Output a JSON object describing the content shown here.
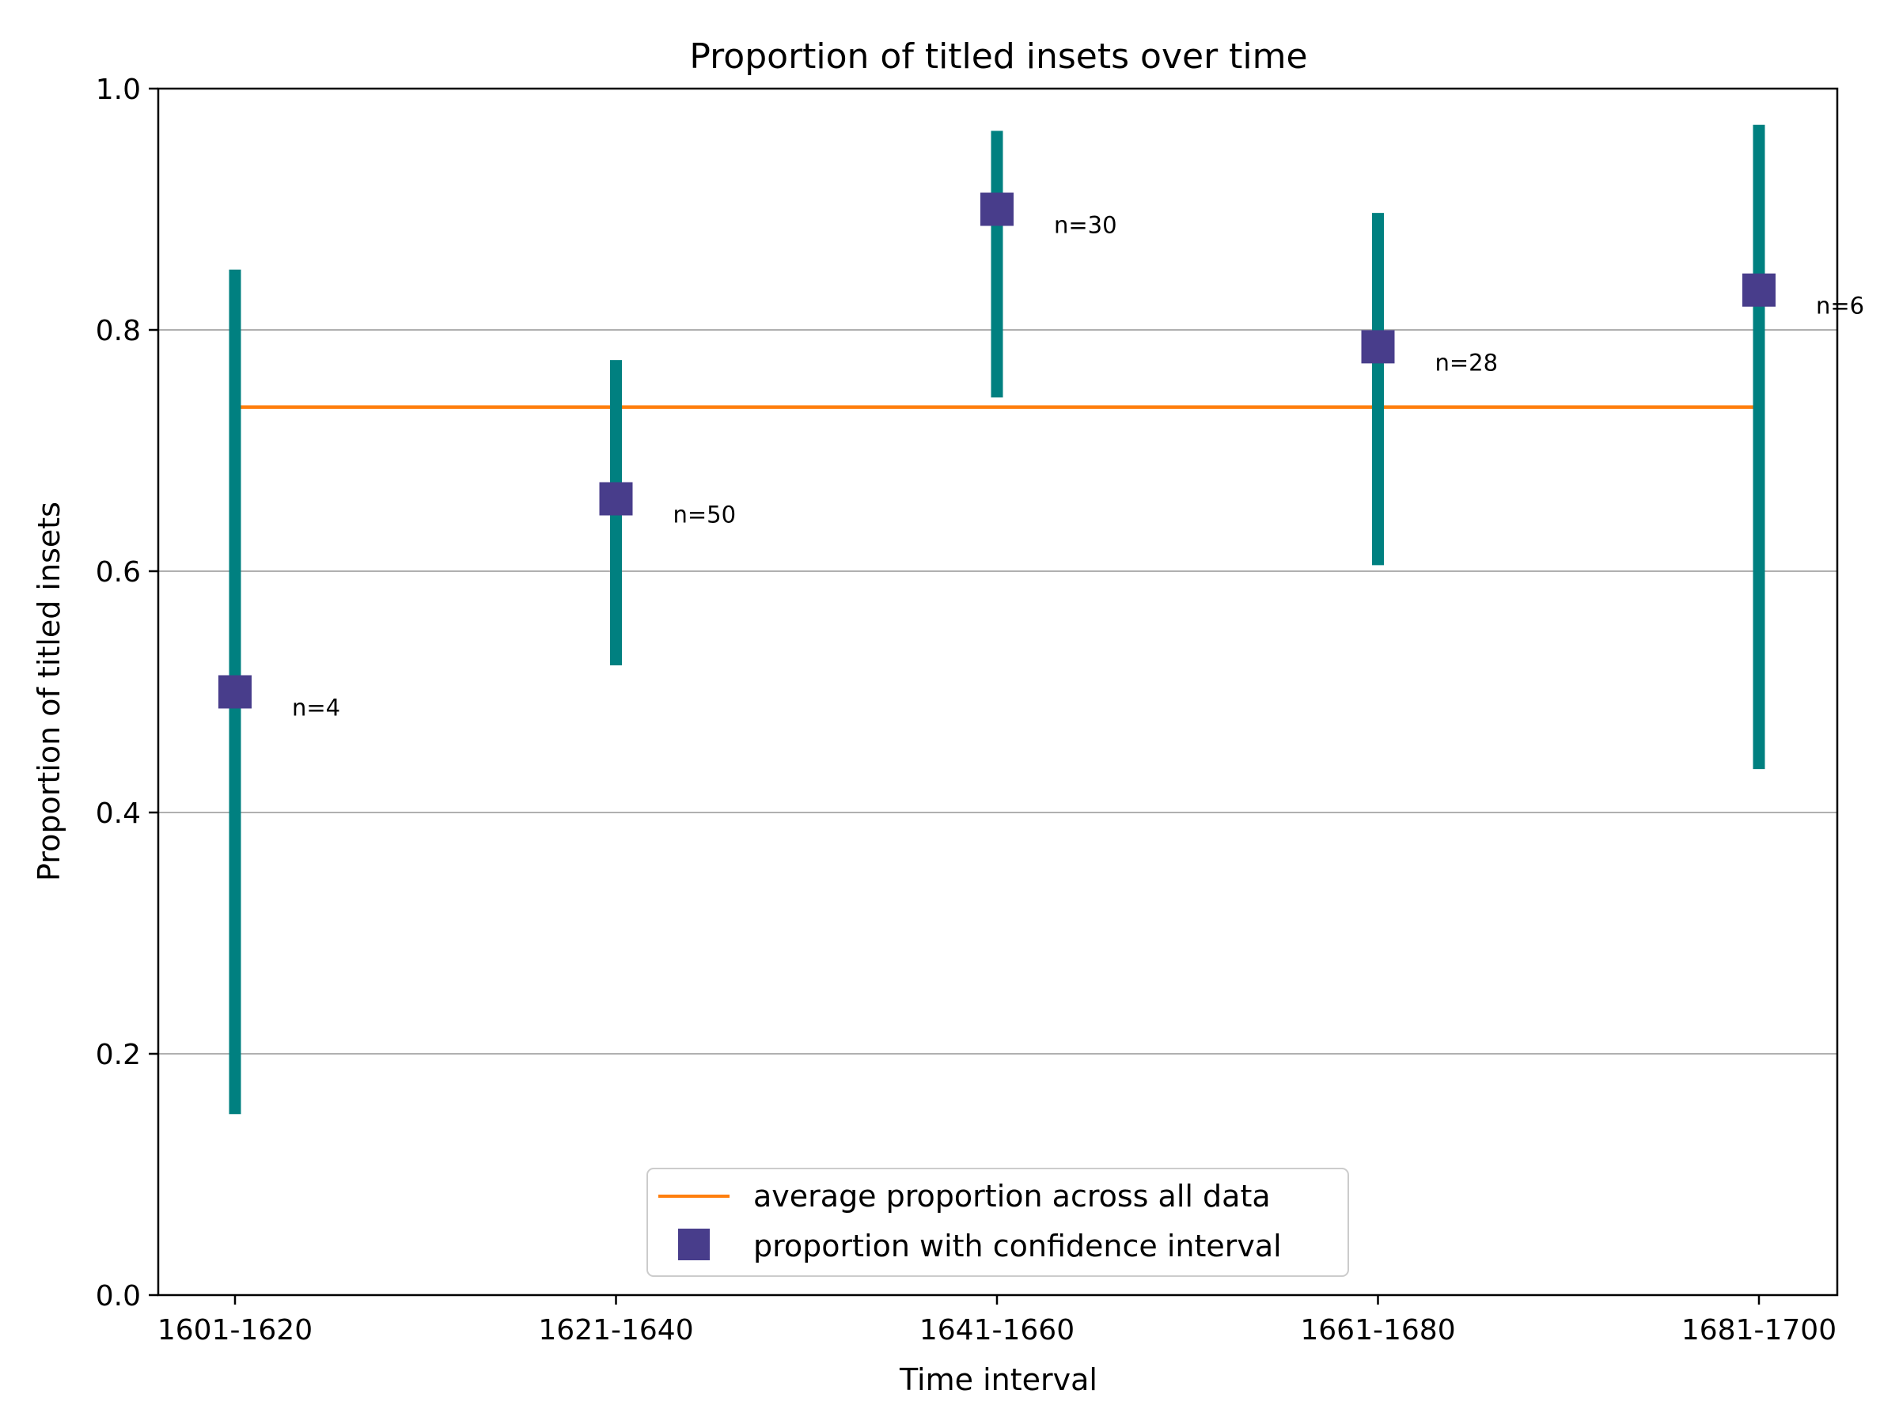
{
  "chart_data": {
    "type": "scatter",
    "title": "Proportion of titled insets over time",
    "xlabel": "Time interval",
    "ylabel": "Proportion of titled insets",
    "categories": [
      "1601-1620",
      "1621-1640",
      "1641-1660",
      "1661-1680",
      "1681-1700"
    ],
    "ylim": [
      0.0,
      1.0
    ],
    "yticks": [
      "0.0",
      "0.2",
      "0.4",
      "0.6",
      "0.8",
      "1.0"
    ],
    "grid": "horizontal",
    "legend_position": "bottom-center",
    "average_proportion": 0.736,
    "series": [
      {
        "name": "proportion with confidence interval",
        "values": [
          0.5,
          0.66,
          0.9,
          0.786,
          0.833
        ],
        "ci_lower": [
          0.15,
          0.522,
          0.744,
          0.605,
          0.436
        ],
        "ci_upper": [
          0.85,
          0.775,
          0.965,
          0.897,
          0.97
        ],
        "n_labels": [
          "n=4",
          "n=50",
          "n=30",
          "n=28",
          "n=6"
        ]
      }
    ],
    "legend": {
      "average_label": "average proportion across all data",
      "points_label": "proportion with confidence interval"
    },
    "colors": {
      "average_line": "#ff7f0e",
      "error_bar": "#008080",
      "marker": "#483d8b",
      "grid": "#b0b0b0"
    }
  }
}
